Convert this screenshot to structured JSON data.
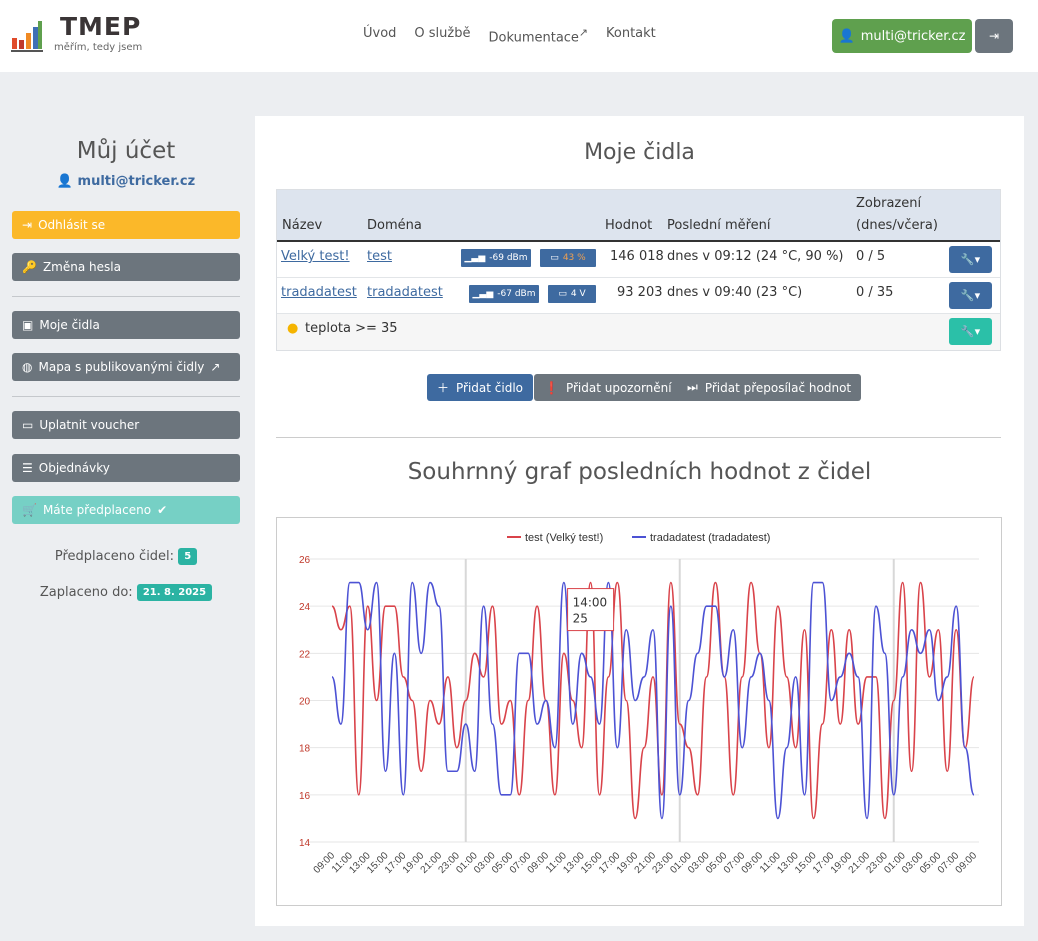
{
  "header": {
    "brand": "TMEP",
    "tagline": "měřím, tedy jsem",
    "nav": [
      "Úvod",
      "O službě",
      "Dokumentace",
      "Kontakt"
    ],
    "user": "multi@tricker.cz"
  },
  "sidebar": {
    "title": "Můj účet",
    "email": "multi@tricker.cz",
    "buttons": {
      "logout": "Odhlásit se",
      "password": "Změna hesla",
      "sensors": "Moje čidla",
      "map": "Mapa s publikovanými čidly",
      "voucher": "Uplatnit voucher",
      "orders": "Objednávky",
      "prepaid": "Máte předplaceno"
    },
    "prepaid_label": "Předplaceno čidel:",
    "prepaid_count": "5",
    "paid_label": "Zaplaceno do:",
    "paid_until": "21. 8. 2025",
    "colors": {
      "warning": "#fbb829",
      "secondary": "#6c757d",
      "info": "#76d0c5"
    }
  },
  "main": {
    "title": "Moje čidla",
    "table": {
      "headers": {
        "name": "Název",
        "domain": "Doména",
        "value": "Hodnot",
        "last": "Poslední měření",
        "views1": "Zobrazení",
        "views2": "(dnes/včera)"
      },
      "rows": [
        {
          "name": "Velký test!",
          "domain": "test",
          "signal": "-69 dBm",
          "battery": "43 %",
          "count": "146 018",
          "last": "dnes v 09:12 (24 °C, 90 %)",
          "views": "0 / 5"
        },
        {
          "name": "tradadatest",
          "domain": "tradadatest",
          "signal": "-67 dBm",
          "battery": "4 V",
          "count": "93 203",
          "last": "dnes v 09:40 (23 °C)",
          "views": "0 / 35"
        }
      ],
      "alert": "teplota >= 35"
    },
    "actions": {
      "add_sensor": "Přidat čidlo",
      "add_alert": "Přidat upozornění",
      "add_forwarder": "Přidat přeposílač hodnot"
    },
    "chart_title": "Souhrnný graf posledních hodnot z čidel"
  },
  "chart_data": {
    "type": "line",
    "ylim": [
      14,
      26
    ],
    "yticks": [
      14,
      16,
      18,
      20,
      22,
      24,
      26
    ],
    "grid": true,
    "legend": "top",
    "xticks": [
      "09:00",
      "11:00",
      "13:00",
      "15:00",
      "17:00",
      "19:00",
      "21:00",
      "23:00",
      "01:00",
      "03:00",
      "05:00",
      "07:00",
      "09:00",
      "11:00",
      "13:00",
      "15:00",
      "17:00",
      "19:00",
      "21:00",
      "23:00",
      "01:00",
      "03:00",
      "05:00",
      "07:00",
      "09:00",
      "11:00",
      "13:00",
      "15:00",
      "17:00",
      "19:00",
      "21:00",
      "23:00",
      "01:00",
      "03:00",
      "05:00",
      "07:00",
      "09:00"
    ],
    "x_hours_from_start": "hourly",
    "series": [
      {
        "name": "test (Velký test!)",
        "color": "#d9434a",
        "values": [
          24,
          23,
          24,
          16,
          24,
          20,
          24,
          24,
          21,
          20,
          17,
          20,
          19,
          21,
          18,
          20,
          22,
          21,
          24,
          19,
          20,
          16,
          20,
          24,
          20,
          16,
          22,
          20,
          18,
          25,
          16,
          21,
          25,
          20,
          15,
          18,
          21,
          16,
          25,
          19,
          18,
          16,
          21,
          25,
          21,
          16,
          21,
          25,
          22,
          18,
          24,
          21,
          18,
          23,
          15,
          19,
          23,
          19,
          23,
          19,
          21,
          21,
          15,
          20,
          25,
          17,
          25,
          21,
          23,
          17,
          23,
          18,
          21
        ]
      },
      {
        "name": "tradadatest (tradadatest)",
        "color": "#4c52d4",
        "values": [
          21,
          19,
          25,
          25,
          23,
          25,
          17,
          22,
          16,
          25,
          22,
          25,
          24,
          17,
          17,
          19,
          17,
          24,
          19,
          16,
          16,
          22,
          22,
          19,
          20,
          18,
          25,
          19,
          22,
          21,
          19,
          25,
          18,
          23,
          20,
          21,
          23,
          15,
          24,
          16,
          20,
          22,
          24,
          24,
          21,
          23,
          18,
          21,
          22,
          20,
          15,
          18,
          21,
          16,
          25,
          25,
          20,
          21,
          22,
          21,
          15,
          24,
          22,
          16,
          21,
          23,
          22,
          23,
          20,
          21,
          24,
          18,
          16
        ]
      }
    ],
    "tooltip": {
      "time": "14:00",
      "value": "25"
    }
  }
}
